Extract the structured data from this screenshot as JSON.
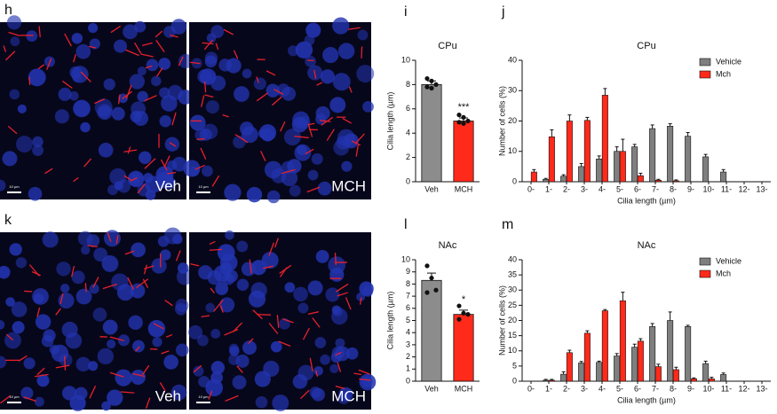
{
  "figure_panels": [
    {
      "letter": "h",
      "images": [
        {
          "label": "Veh",
          "scale_bar": "10 µm"
        },
        {
          "label": "MCH",
          "scale_bar": "10 µm"
        }
      ]
    },
    {
      "letter": "k",
      "images": [
        {
          "label": "Veh",
          "scale_bar": "10 µm"
        },
        {
          "label": "MCH",
          "scale_bar": "10 µm"
        }
      ]
    }
  ],
  "chart_data": [
    {
      "type": "bar",
      "panel": "i",
      "title": "CPu",
      "y_label": "Cilia length (µm)",
      "categories": [
        "Veh",
        "MCH"
      ],
      "values": [
        8.0,
        5.0
      ],
      "errors": [
        0.3,
        0.25
      ],
      "colors": [
        "#8c8c8c",
        "#ff2a1a"
      ],
      "points": [
        [
          8.5,
          8.3,
          8.0,
          7.8,
          7.7
        ],
        [
          5.5,
          5.3,
          5.0,
          4.9,
          4.8
        ]
      ],
      "annotations": [
        null,
        "***"
      ],
      "ylim": [
        0,
        10
      ],
      "yticks": [
        0,
        2,
        4,
        6,
        8,
        10
      ]
    },
    {
      "type": "grouped_bar",
      "panel": "j",
      "title": "CPu",
      "y_label": "Number of cells (%)",
      "x_label": "Cilia length (µm)",
      "categories": [
        "0-",
        "1-",
        "2-",
        "3-",
        "4-",
        "5-",
        "6-",
        "7-",
        "8-",
        "9-",
        "10-",
        "11-",
        "12-",
        "13-"
      ],
      "series": [
        {
          "name": "Vehicle",
          "color": "#7f7f7f",
          "values": [
            0,
            0.8,
            1.8,
            5,
            7.5,
            10,
            11.5,
            17.5,
            18.3,
            15,
            8.2,
            3.2,
            0,
            0
          ],
          "errors": [
            0,
            0.3,
            0.5,
            1,
            1,
            1.5,
            0.8,
            1.2,
            0.8,
            1.2,
            0.8,
            0.8,
            0,
            0
          ]
        },
        {
          "name": "Mch",
          "color": "#ff2a1a",
          "values": [
            3.2,
            14.8,
            20,
            20.2,
            28.5,
            10,
            2,
            0.5,
            0.3,
            0,
            0,
            0,
            0,
            0
          ],
          "errors": [
            0.8,
            2.3,
            2,
            1,
            2.2,
            4,
            0.8,
            0.3,
            0.3,
            0,
            0,
            0,
            0,
            0
          ]
        }
      ],
      "legend": "top-right",
      "ylim": [
        0,
        40
      ],
      "yticks": [
        0,
        10,
        20,
        30,
        40
      ]
    },
    {
      "type": "bar",
      "panel": "l",
      "title": "NAc",
      "y_label": "Cilia length (µm)",
      "categories": [
        "Veh",
        "MCH"
      ],
      "values": [
        8.3,
        5.5
      ],
      "errors": [
        0.6,
        0.35
      ],
      "colors": [
        "#8c8c8c",
        "#ff2a1a"
      ],
      "points": [
        [
          9.5,
          8.5,
          7.5,
          7.3
        ],
        [
          6.2,
          5.6,
          5.5,
          5.1
        ]
      ],
      "annotations": [
        null,
        "*"
      ],
      "ylim": [
        0,
        10
      ],
      "yticks": [
        0,
        1,
        2,
        3,
        4,
        5,
        6,
        7,
        8,
        9,
        10
      ]
    },
    {
      "type": "grouped_bar",
      "panel": "m",
      "title": "NAc",
      "y_label": "Number of cells (%)",
      "x_label": "Cilia length (µm)",
      "categories": [
        "0-",
        "1-",
        "2-",
        "3-",
        "4-",
        "5-",
        "6-",
        "7-",
        "8-",
        "9-",
        "10-",
        "11-",
        "12-",
        "13-"
      ],
      "series": [
        {
          "name": "Vehicle",
          "color": "#7f7f7f",
          "values": [
            0,
            0.3,
            2.3,
            6,
            6.2,
            8.3,
            11.2,
            18,
            20,
            18,
            5.8,
            2.2,
            0,
            0
          ],
          "errors": [
            0,
            0.3,
            0.8,
            0.5,
            0.4,
            0.8,
            1,
            1,
            2.8,
            0.4,
            0.8,
            0.5,
            0,
            0
          ]
        },
        {
          "name": "Mch",
          "color": "#ff2a1a",
          "values": [
            0,
            0.3,
            9.4,
            15.8,
            23.2,
            26.5,
            13.2,
            4.8,
            3.8,
            0.8,
            0.8,
            0,
            0,
            0
          ],
          "errors": [
            0,
            0.3,
            0.8,
            0.8,
            0.4,
            2.8,
            0.8,
            0.8,
            0.8,
            0.3,
            0.5,
            0,
            0,
            0
          ]
        }
      ],
      "legend": "top-right",
      "ylim": [
        0,
        40
      ],
      "yticks": [
        0,
        5,
        10,
        15,
        20,
        25,
        30,
        35,
        40
      ]
    }
  ]
}
